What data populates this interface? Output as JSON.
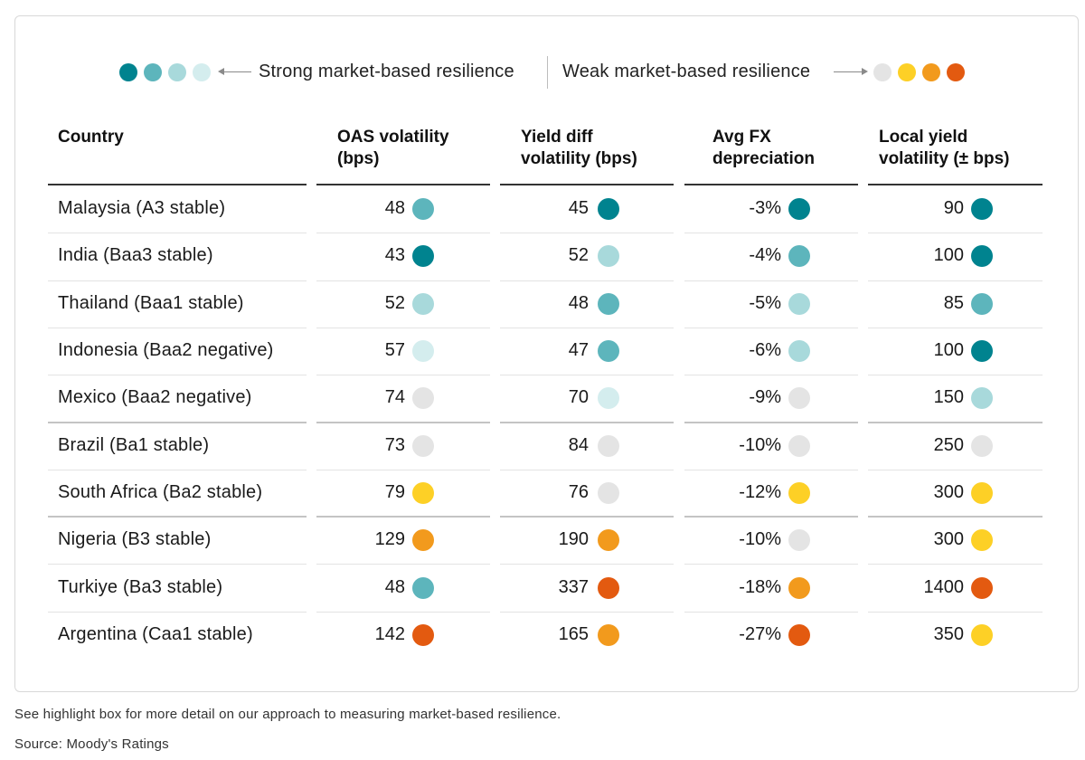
{
  "legend": {
    "strong_label": "Strong market-based resilience",
    "weak_label": "Weak market-based resilience"
  },
  "colors": {
    "teal_dark": "#00838F",
    "teal_mid": "#5DB5BC",
    "teal_light": "#A8D9DB",
    "teal_pale": "#D4EDEE",
    "grey": "#E4E4E4",
    "yellow": "#FDD026",
    "orange": "#F29A1D",
    "red_orange": "#E35A10"
  },
  "headers": {
    "country": "Country",
    "oas": [
      "OAS volatility",
      "(bps)"
    ],
    "yield": [
      "Yield diff",
      "volatility (bps)"
    ],
    "fx": [
      "Avg FX",
      "depreciation"
    ],
    "local": [
      "Local yield",
      "volatility (± bps)"
    ]
  },
  "chart_data": {
    "type": "table",
    "columns": [
      "Country",
      "OAS volatility (bps)",
      "Yield diff volatility (bps)",
      "Avg FX depreciation",
      "Local yield volatility (± bps)"
    ],
    "rows": [
      {
        "country": "Malaysia (A3 stable)",
        "oas": "48",
        "oas_c": "teal_mid",
        "yield": "45",
        "yield_c": "teal_dark",
        "fx": "-3%",
        "fx_c": "teal_dark",
        "local": "90",
        "local_c": "teal_dark"
      },
      {
        "country": "India (Baa3 stable)",
        "oas": "43",
        "oas_c": "teal_dark",
        "yield": "52",
        "yield_c": "teal_light",
        "fx": "-4%",
        "fx_c": "teal_mid",
        "local": "100",
        "local_c": "teal_dark"
      },
      {
        "country": "Thailand (Baa1 stable)",
        "oas": "52",
        "oas_c": "teal_light",
        "yield": "48",
        "yield_c": "teal_mid",
        "fx": "-5%",
        "fx_c": "teal_light",
        "local": "85",
        "local_c": "teal_mid"
      },
      {
        "country": "Indonesia (Baa2 negative)",
        "oas": "57",
        "oas_c": "teal_pale",
        "yield": "47",
        "yield_c": "teal_mid",
        "fx": "-6%",
        "fx_c": "teal_light",
        "local": "100",
        "local_c": "teal_dark"
      },
      {
        "country": "Mexico (Baa2 negative)",
        "oas": "74",
        "oas_c": "grey",
        "yield": "70",
        "yield_c": "teal_pale",
        "fx": "-9%",
        "fx_c": "grey",
        "local": "150",
        "local_c": "teal_light"
      },
      {
        "country": "Brazil (Ba1 stable)",
        "oas": "73",
        "oas_c": "grey",
        "yield": "84",
        "yield_c": "grey",
        "fx": "-10%",
        "fx_c": "grey",
        "local": "250",
        "local_c": "grey"
      },
      {
        "country": "South Africa (Ba2 stable)",
        "oas": "79",
        "oas_c": "yellow",
        "yield": "76",
        "yield_c": "grey",
        "fx": "-12%",
        "fx_c": "yellow",
        "local": "300",
        "local_c": "yellow"
      },
      {
        "country": "Nigeria (B3 stable)",
        "oas": "129",
        "oas_c": "orange",
        "yield": "190",
        "yield_c": "orange",
        "fx": "-10%",
        "fx_c": "grey",
        "local": "300",
        "local_c": "yellow"
      },
      {
        "country": "Turkiye (Ba3 stable)",
        "oas": "48",
        "oas_c": "teal_mid",
        "yield": "337",
        "yield_c": "red_orange",
        "fx": "-18%",
        "fx_c": "orange",
        "local": "1400",
        "local_c": "red_orange"
      },
      {
        "country": "Argentina (Caa1 stable)",
        "oas": "142",
        "oas_c": "red_orange",
        "yield": "165",
        "yield_c": "orange",
        "fx": "-27%",
        "fx_c": "red_orange",
        "local": "350",
        "local_c": "yellow"
      }
    ]
  },
  "footnotes": {
    "note": "See highlight box for more detail on our approach to measuring market-based resilience.",
    "source": "Source: Moody's Ratings"
  }
}
